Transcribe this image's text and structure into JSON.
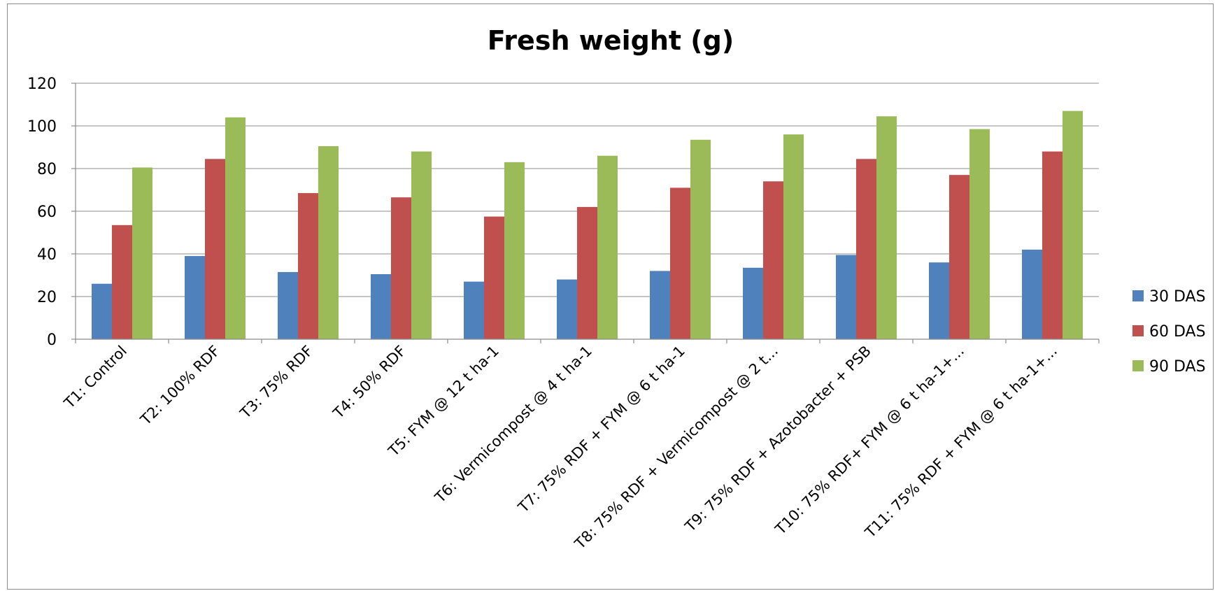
{
  "chart_data": {
    "type": "bar",
    "title": "Fresh weight (g)",
    "xlabel": "",
    "ylabel": "",
    "ylim": [
      0,
      120
    ],
    "yticks": [
      0,
      20,
      40,
      60,
      80,
      100,
      120
    ],
    "grid": true,
    "legend_position": "right",
    "categories": [
      "T1: Control",
      "T2: 100% RDF",
      "T3: 75% RDF",
      "T4: 50% RDF",
      "T5: FYM @ 12 t ha-1",
      "T6: Vermicompost @ 4 t ha-1",
      "T7: 75% RDF + FYM @ 6 t ha-1",
      "T8: 75% RDF + Vermicompost @ 2 t...",
      "T9: 75% RDF + Azotobacter + PSB",
      "T10: 75% RDF+ FYM @ 6 t ha-1+...",
      "T11: 75% RDF + FYM @ 6 t ha-1+..."
    ],
    "series": [
      {
        "name": "30 DAS",
        "color": "#4f81bd",
        "values": [
          26,
          39,
          31.5,
          30.5,
          27,
          28,
          32,
          33.5,
          39.5,
          36,
          42
        ]
      },
      {
        "name": "60 DAS",
        "color": "#c0504d",
        "values": [
          53.5,
          84.5,
          68.5,
          66.5,
          57.5,
          62,
          71,
          74,
          84.5,
          77,
          88
        ]
      },
      {
        "name": "90 DAS",
        "color": "#9bbb59",
        "values": [
          80.5,
          104,
          90.5,
          88,
          83,
          86,
          93.5,
          96,
          104.5,
          98.5,
          107
        ]
      }
    ]
  }
}
